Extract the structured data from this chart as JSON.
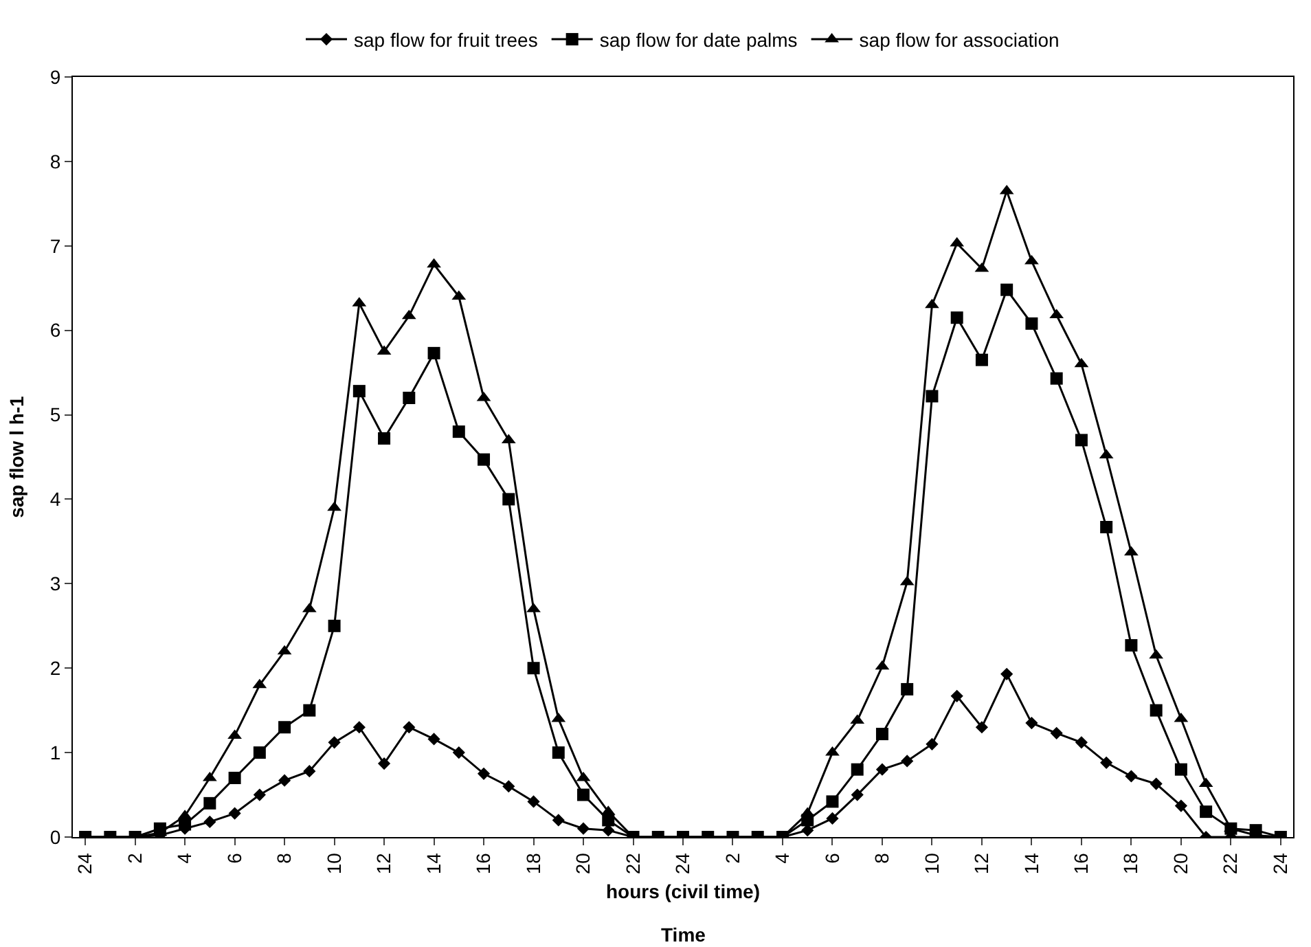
{
  "chart_data": {
    "type": "line",
    "xlabel": "hours (civil time)",
    "ylabel": "sap flow l h-1",
    "annotations": [
      "Time"
    ],
    "categories": [
      "24",
      null,
      "2",
      null,
      "4",
      null,
      "6",
      null,
      "8",
      null,
      "10",
      null,
      "12",
      null,
      "14",
      null,
      "16",
      null,
      "18",
      null,
      "20",
      null,
      "22",
      null,
      "24",
      null,
      "2",
      null,
      "4",
      null,
      "6",
      null,
      "8",
      null,
      "10",
      null,
      "12",
      null,
      "14",
      null,
      "16",
      null,
      "18",
      null,
      "20",
      null,
      "22",
      null,
      "24"
    ],
    "ylim": [
      0,
      9
    ],
    "yticks": [
      0,
      1,
      2,
      3,
      4,
      5,
      6,
      7,
      8,
      9
    ],
    "legend": "top",
    "line_style": "solid",
    "series": [
      {
        "name": "sap flow for fruit trees",
        "color": "#000000",
        "marker": "diamond",
        "values": [
          0,
          0,
          0,
          0.02,
          0.1,
          0.18,
          0.28,
          0.5,
          0.67,
          0.78,
          1.12,
          1.3,
          0.87,
          1.3,
          1.16,
          1.0,
          0.75,
          0.6,
          0.42,
          0.2,
          0.1,
          0.08,
          0,
          0,
          0,
          0,
          0,
          0,
          0,
          0.08,
          0.22,
          0.5,
          0.8,
          0.9,
          1.1,
          1.67,
          1.3,
          1.93,
          1.35,
          1.23,
          1.12,
          0.88,
          0.72,
          0.63,
          0.37,
          0,
          0,
          0,
          0
        ]
      },
      {
        "name": "sap flow for date palms",
        "color": "#000000",
        "marker": "square",
        "values": [
          0,
          0,
          0,
          0.1,
          0.15,
          0.4,
          0.7,
          1.0,
          1.3,
          1.5,
          2.5,
          5.28,
          4.72,
          5.2,
          5.73,
          4.8,
          4.47,
          4.0,
          2.0,
          1.0,
          0.5,
          0.2,
          0,
          0,
          0,
          0,
          0,
          0,
          0,
          0.2,
          0.42,
          0.8,
          1.22,
          1.75,
          5.22,
          6.15,
          5.65,
          6.48,
          6.08,
          5.43,
          4.7,
          3.67,
          2.27,
          1.5,
          0.8,
          0.3,
          0.1,
          0.08,
          0
        ]
      },
      {
        "name": "sap flow for association",
        "color": "#000000",
        "marker": "triangle",
        "values": [
          0,
          0,
          0,
          0.05,
          0.25,
          0.7,
          1.2,
          1.8,
          2.2,
          2.7,
          3.9,
          6.32,
          5.75,
          6.17,
          6.78,
          6.4,
          5.2,
          4.7,
          2.7,
          1.4,
          0.7,
          0.3,
          0,
          0,
          0,
          0,
          0,
          0,
          0,
          0.28,
          1.0,
          1.38,
          2.02,
          3.02,
          6.3,
          7.03,
          6.73,
          7.65,
          6.82,
          6.18,
          5.6,
          4.52,
          3.37,
          2.15,
          1.4,
          0.63,
          0.1,
          0.02,
          0
        ]
      }
    ]
  }
}
